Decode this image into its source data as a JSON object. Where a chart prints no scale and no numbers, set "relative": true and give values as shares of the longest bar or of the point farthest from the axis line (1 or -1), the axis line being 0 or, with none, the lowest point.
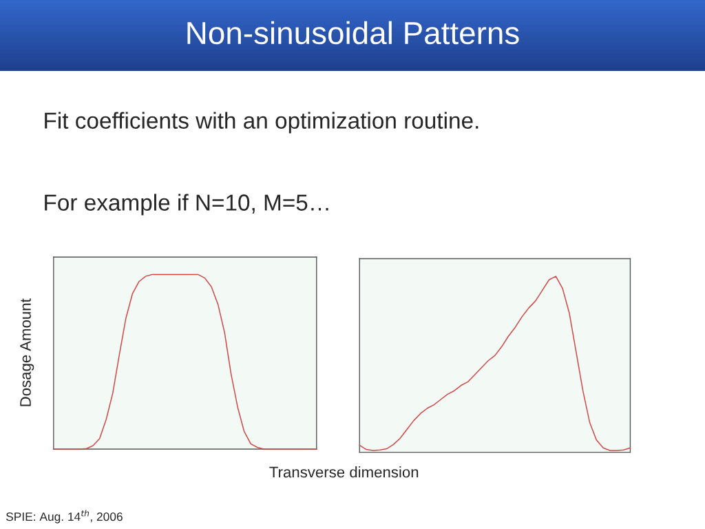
{
  "chart_data": [
    {
      "type": "line",
      "title": "Non-sinusoidal Patterns",
      "ylabel": "Dosage Amount",
      "xlabel": "Transverse dimension",
      "relative": true,
      "annotations": [
        "Fit coefficients with an optimization routine.",
        "For example if N=10, M=5…",
        "SPIE: Aug. 14$^{th}$, 2006"
      ],
      "categories": [
        null,
        null,
        null,
        null,
        null,
        null,
        null,
        null,
        null,
        null,
        null,
        null,
        null,
        null,
        null,
        null,
        null,
        null,
        null,
        null,
        null,
        null,
        null,
        null,
        null,
        null,
        null,
        null,
        null,
        null,
        null,
        null,
        null,
        null,
        null,
        null,
        null,
        null,
        null,
        null,
        null
      ],
      "series": [
        {
          "color": "#d04a4a",
          "values": [
            0,
            0,
            0,
            0,
            0,
            0.003,
            0.02,
            0.06,
            0.17,
            0.32,
            0.54,
            0.75,
            0.89,
            0.96,
            0.99,
            1,
            1,
            1,
            1,
            1,
            1,
            1,
            1,
            0.98,
            0.93,
            0.83,
            0.67,
            0.43,
            0.24,
            0.1,
            0.03,
            0.01,
            0,
            0,
            0,
            0,
            0,
            0,
            0,
            0,
            0
          ]
        }
      ]
    },
    {
      "type": "line",
      "relative": true,
      "categories": [
        null,
        null,
        null,
        null,
        null,
        null,
        null,
        null,
        null,
        null,
        null,
        null,
        null,
        null,
        null,
        null,
        null,
        null,
        null,
        null,
        null,
        null,
        null,
        null,
        null,
        null,
        null,
        null,
        null,
        null,
        null,
        null,
        null,
        null,
        null,
        null,
        null,
        null,
        null,
        null,
        null
      ],
      "series": [
        {
          "color": "#d04a4a",
          "values": [
            0.04,
            0.016,
            0.01,
            0.013,
            0.02,
            0.044,
            0.08,
            0.13,
            0.18,
            0.22,
            0.25,
            0.27,
            0.3,
            0.33,
            0.35,
            0.38,
            0.4,
            0.44,
            0.48,
            0.52,
            0.55,
            0.6,
            0.66,
            0.71,
            0.77,
            0.82,
            0.86,
            0.92,
            0.98,
            1,
            0.93,
            0.79,
            0.57,
            0.35,
            0.17,
            0.07,
            0.025,
            0.01,
            0.01,
            0.013,
            0.025
          ]
        }
      ]
    }
  ]
}
